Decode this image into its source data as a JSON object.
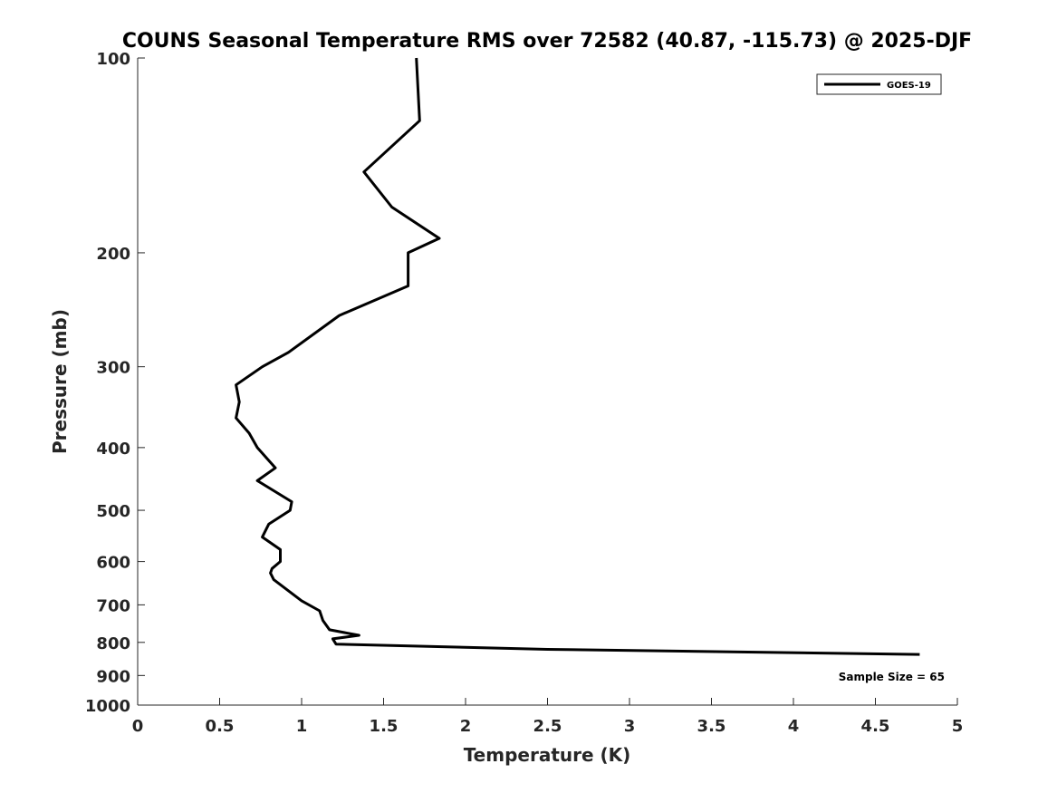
{
  "chart_data": {
    "type": "line",
    "title": "COUNS Seasonal Temperature RMS over 72582 (40.87, -115.73) @ 2025-DJF",
    "xlabel": "Temperature (K)",
    "ylabel": "Pressure (mb)",
    "xlim": [
      0,
      5
    ],
    "ylim": [
      1000,
      100
    ],
    "y_scale": "log",
    "y_inverted": true,
    "grid": false,
    "legend_position": "top-right",
    "x_ticks": [
      0,
      0.5,
      1,
      1.5,
      2,
      2.5,
      3,
      3.5,
      4,
      4.5,
      5
    ],
    "x_tick_labels": [
      "0",
      "0.5",
      "1",
      "1.5",
      "2",
      "2.5",
      "3",
      "3.5",
      "4",
      "4.5",
      "5"
    ],
    "y_ticks": [
      100,
      200,
      300,
      400,
      500,
      600,
      700,
      800,
      900,
      1000
    ],
    "y_tick_labels": [
      "100",
      "200",
      "300",
      "400",
      "500",
      "600",
      "700",
      "800",
      "900",
      "1000"
    ],
    "annotation": "Sample Size = 65",
    "series": [
      {
        "name": "GOES-19",
        "color": "#000000",
        "points": [
          {
            "x": 1.7,
            "p": 100
          },
          {
            "x": 1.72,
            "p": 125
          },
          {
            "x": 1.38,
            "p": 150
          },
          {
            "x": 1.55,
            "p": 170
          },
          {
            "x": 1.84,
            "p": 190
          },
          {
            "x": 1.65,
            "p": 200
          },
          {
            "x": 1.65,
            "p": 225
          },
          {
            "x": 1.23,
            "p": 250
          },
          {
            "x": 0.92,
            "p": 285
          },
          {
            "x": 0.76,
            "p": 300
          },
          {
            "x": 0.6,
            "p": 320
          },
          {
            "x": 0.62,
            "p": 340
          },
          {
            "x": 0.6,
            "p": 360
          },
          {
            "x": 0.68,
            "p": 380
          },
          {
            "x": 0.73,
            "p": 400
          },
          {
            "x": 0.84,
            "p": 430
          },
          {
            "x": 0.73,
            "p": 450
          },
          {
            "x": 0.94,
            "p": 485
          },
          {
            "x": 0.93,
            "p": 500
          },
          {
            "x": 0.8,
            "p": 525
          },
          {
            "x": 0.76,
            "p": 550
          },
          {
            "x": 0.87,
            "p": 575
          },
          {
            "x": 0.87,
            "p": 600
          },
          {
            "x": 0.82,
            "p": 615
          },
          {
            "x": 0.81,
            "p": 625
          },
          {
            "x": 0.83,
            "p": 640
          },
          {
            "x": 1.0,
            "p": 690
          },
          {
            "x": 1.11,
            "p": 715
          },
          {
            "x": 1.13,
            "p": 740
          },
          {
            "x": 1.17,
            "p": 765
          },
          {
            "x": 1.35,
            "p": 780
          },
          {
            "x": 1.19,
            "p": 790
          },
          {
            "x": 1.21,
            "p": 805
          },
          {
            "x": 2.5,
            "p": 820
          },
          {
            "x": 4.77,
            "p": 835
          }
        ]
      }
    ]
  }
}
